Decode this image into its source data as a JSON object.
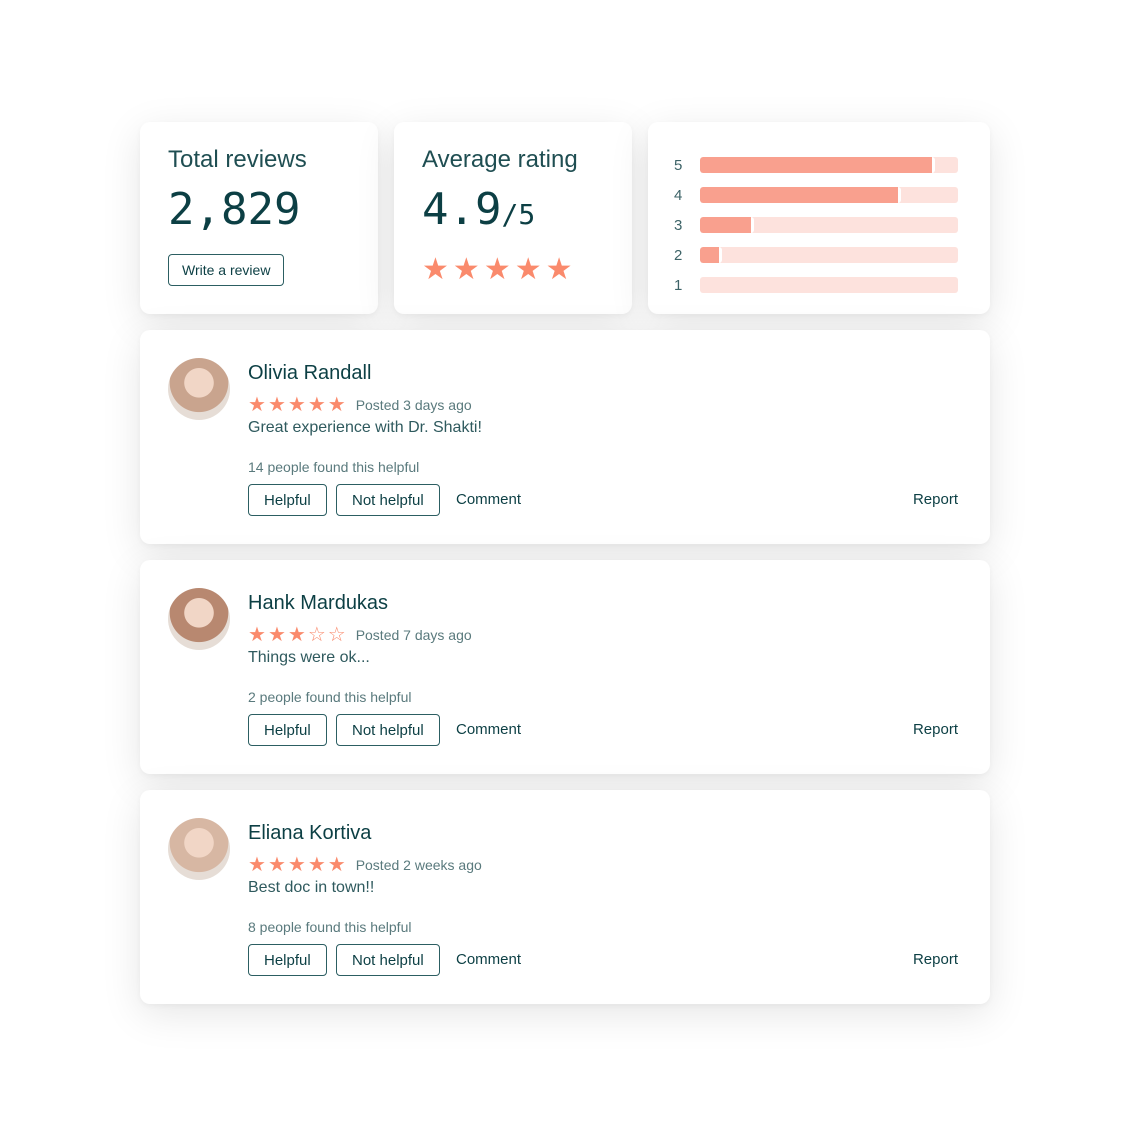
{
  "colors": {
    "primary": "#0c3f44",
    "star": "#fa8a6c",
    "bar_fill": "#f9a08e",
    "bar_track": "#fde2dd"
  },
  "total": {
    "title": "Total reviews",
    "value": "2,829",
    "button": "Write a review"
  },
  "average": {
    "title": "Average rating",
    "value": "4.9",
    "suffix": "/5",
    "stars": 5
  },
  "distribution": [
    {
      "label": "5",
      "fraction": 0.91
    },
    {
      "label": "4",
      "fraction": 0.78
    },
    {
      "label": "3",
      "fraction": 0.21
    },
    {
      "label": "2",
      "fraction": 0.085
    },
    {
      "label": "1",
      "fraction": 0
    }
  ],
  "reviews": [
    {
      "name": "Olivia Randall",
      "rating": 5,
      "posted": "Posted 3 days ago",
      "text": "Great experience with Dr. Shakti!",
      "helpful_count": "14 people found this helpful",
      "avatar_color": "#c9a48e"
    },
    {
      "name": "Hank Mardukas",
      "rating": 3,
      "posted": "Posted 7 days ago",
      "text": "Things were ok...",
      "helpful_count": "2 people found this helpful",
      "avatar_color": "#b88870"
    },
    {
      "name": "Eliana Kortiva",
      "rating": 5,
      "posted": "Posted 2 weeks ago",
      "text": "Best doc in town!!",
      "helpful_count": "8 people found this helpful",
      "avatar_color": "#d7b7a3"
    }
  ],
  "actions": {
    "helpful": "Helpful",
    "not_helpful": "Not helpful",
    "comment": "Comment",
    "report": "Report"
  }
}
